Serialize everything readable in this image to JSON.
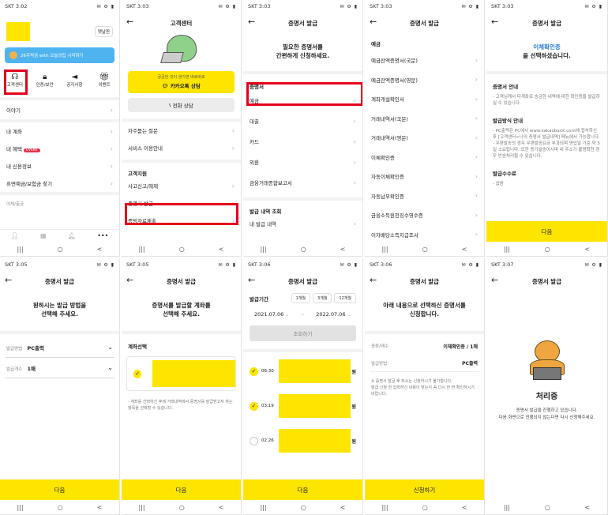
{
  "status": {
    "p1": "SKT 3:02",
    "p2": "SKT 3:03",
    "p3": "SKT 3:03",
    "p4": "SKT 3:03",
    "p5": "SKT 3:03",
    "p6": "SKT 3:05",
    "p7": "SKT 3:05",
    "p8": "SKT 3:06",
    "p9": "SKT 3:06",
    "p10": "SKT 3:07",
    "icons": "✉ ⚙ ▮"
  },
  "nav": {
    "menu": "|||",
    "home": "○",
    "back": "<"
  },
  "p1": {
    "profile_btn": "옛날찐",
    "banner": "26주적금 with 오늘의집 시작하기",
    "menu": [
      {
        "label": "고객센터",
        "icon": "headset-icon"
      },
      {
        "label": "인증/보안",
        "icon": "lock-icon"
      },
      {
        "label": "공지사항",
        "icon": "megaphone-icon"
      },
      {
        "label": "이벤트",
        "icon": "gift-icon"
      }
    ],
    "items": [
      "이야기",
      "내 계좌",
      "내 혜택",
      "내 신용정보",
      "휴면예금/보험금 찾기"
    ],
    "event_badge": "EVENT",
    "footer": "이체/출금"
  },
  "p2": {
    "title": "고객센터",
    "kakao_sub": "궁금한 것이 생기면 바로바로",
    "kakao_label": "카카오톡 상담",
    "phone_label": "전화 상담",
    "faq": [
      "자주묻는 질문",
      "서비스 이용안내"
    ],
    "section": "고객지원",
    "support": [
      "사고신고/해제",
      "증명서 발급",
      "증빙자료제출"
    ]
  },
  "p3": {
    "title": "증명서 발급",
    "headline": [
      "필요한 증명서를",
      "간편하게 신청하세요."
    ],
    "section": "증명서",
    "items": [
      "예금",
      "대출",
      "카드",
      "외환",
      "금융거래종합보고서"
    ],
    "section2": "발급 내역 조회",
    "history": "내 발급 내역"
  },
  "p4": {
    "title": "증명서 발급",
    "section": "예금",
    "items": [
      "예금잔액증명서(국문)",
      "예금잔액증명서(영문)",
      "계좌개설확인서",
      "거래내역서(국문)",
      "거래내역서(영문)",
      "이체확인증",
      "자동이체확인증",
      "자동납부확인증",
      "금융소득원천징수영수증",
      "이자배당소득지급조서"
    ]
  },
  "p5": {
    "title": "증명서 발급",
    "selected": "이체확인증",
    "selected_sub": "을 선택하셨습니다.",
    "guide_title": "증명서 안내",
    "guide": "고객님께서 타계좌로 송금한 내역에 대한 확인증을 발급하실 수 있습니다.",
    "method_title": "발급방식 안내",
    "method": [
      "PC출력은 PC에서 www.kakaobank.com에 접속하신 후 [고객센터>나의 증명서 발급내역] 메뉴에서 가능합니다.",
      "우편발송의 경우 우편발송요금 부과되며 영업일 기준 약 5일 소요됩니다. 또한 증기발송이시며 내 주소가 불명확한 경우 반송처리될 수 있습니다."
    ],
    "fee_title": "발급수수료",
    "fee": "없음",
    "next": "다음"
  },
  "p6": {
    "title": "증명서 발급",
    "headline": [
      "원하시는 발급 방법을",
      "선택해 주세요."
    ],
    "method_label": "발급방법",
    "method_value": "PC출력",
    "count_label": "발급개수",
    "count_value": "1매",
    "next": "다음"
  },
  "p7": {
    "title": "증명서 발급",
    "headline": [
      "증명서를 발급할 계좌를",
      "선택해 주세요."
    ],
    "section": "계좌선택",
    "note": "계좌를 선택하신 후에 거래내역에서 증명서를 발급받고자 하는 항목을 선택할 수 있습니다.",
    "next": "다음"
  },
  "p8": {
    "title": "증명서 발급",
    "period_label": "발급기간",
    "periods": [
      "1개월",
      "3개월",
      "12개월"
    ],
    "date_from": "2021.07.06",
    "date_sep": "~",
    "date_to": "2022.07.06",
    "search": "조회하기",
    "rows": [
      {
        "date": "06.30",
        "unit": "원",
        "checked": true
      },
      {
        "date": "03.19",
        "unit": "원",
        "checked": true
      },
      {
        "date": "02.26",
        "unit": "원",
        "checked": false
      }
    ],
    "next": "다음"
  },
  "p9": {
    "title": "증명서 발급",
    "headline": [
      "아래 내용으로 선택하신 증명서를",
      "신청합니다."
    ],
    "kind_label": "종류/매수",
    "kind_value": "이체확인증 / 1매",
    "method_label": "발급방법",
    "method_value": "PC출력",
    "notes": [
      "※ 증명서 발급 후 취소는 신청하시기 불가합니다.",
      "발급 신청 전 입력하신 내용이 맞는지 꼭 다시 한 번 확인하시기 바랍니다."
    ],
    "submit": "신청하기"
  },
  "p10": {
    "title": "증명서 발급",
    "status": "처리중",
    "desc": [
      "증명서 발급을 진행하고 있습니다.",
      "다음 화면으로 진행되지 않는다면 다시 신청해주세요."
    ]
  }
}
